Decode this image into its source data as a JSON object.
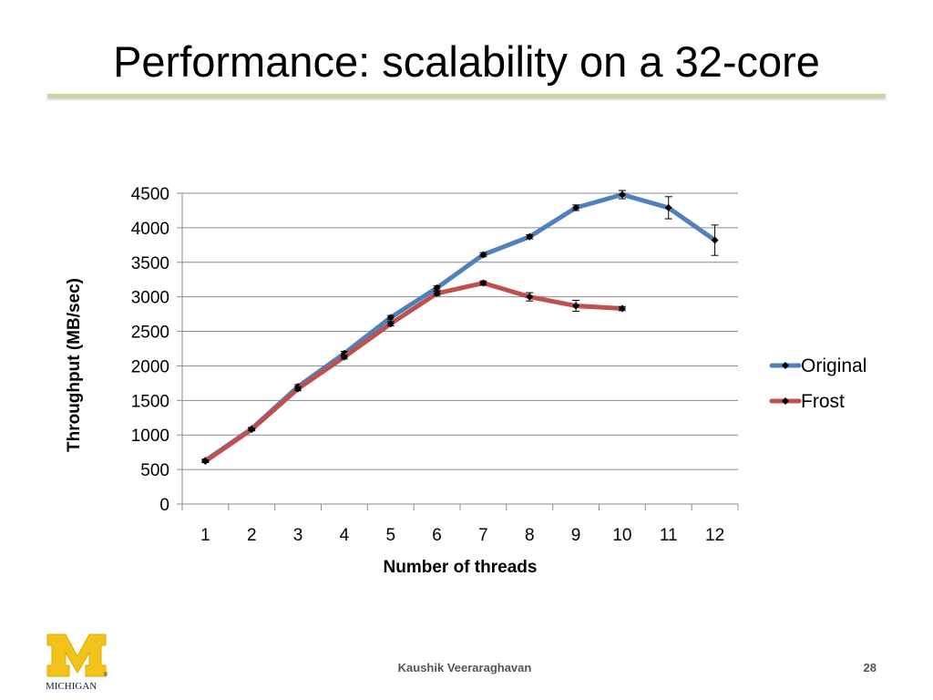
{
  "slide": {
    "title": "Performance: scalability on a 32-core",
    "author": "Kaushik Veeraraghavan",
    "page_number": "28",
    "logo_text": "MICHIGAN"
  },
  "colors": {
    "title_rule": "#c4d79b",
    "original": "#4f81bd",
    "frost": "#c0504d",
    "grid": "#8c8c8c"
  },
  "chart_data": {
    "type": "line",
    "xlabel": "Number of threads",
    "ylabel": "Throughput (MB/sec)",
    "categories": [
      "1",
      "2",
      "3",
      "4",
      "5",
      "6",
      "7",
      "8",
      "9",
      "10",
      "11",
      "12"
    ],
    "ylim": [
      0,
      4500
    ],
    "yticks": [
      0,
      500,
      1000,
      1500,
      2000,
      2500,
      3000,
      3500,
      4000,
      4500
    ],
    "grid": true,
    "legend_position": "right",
    "series": [
      {
        "name": "Original",
        "color": "#4f81bd",
        "values": [
          630,
          1090,
          1700,
          2180,
          2700,
          3130,
          3610,
          3870,
          4290,
          4480,
          4290,
          3820
        ],
        "errors": [
          20,
          20,
          30,
          30,
          30,
          30,
          30,
          30,
          40,
          60,
          160,
          220
        ]
      },
      {
        "name": "Frost",
        "color": "#c0504d",
        "values": [
          620,
          1080,
          1670,
          2130,
          2610,
          3050,
          3200,
          3000,
          2870,
          2830,
          null,
          null
        ],
        "errors": [
          20,
          20,
          30,
          30,
          30,
          30,
          30,
          60,
          80,
          30,
          null,
          null
        ]
      }
    ]
  }
}
